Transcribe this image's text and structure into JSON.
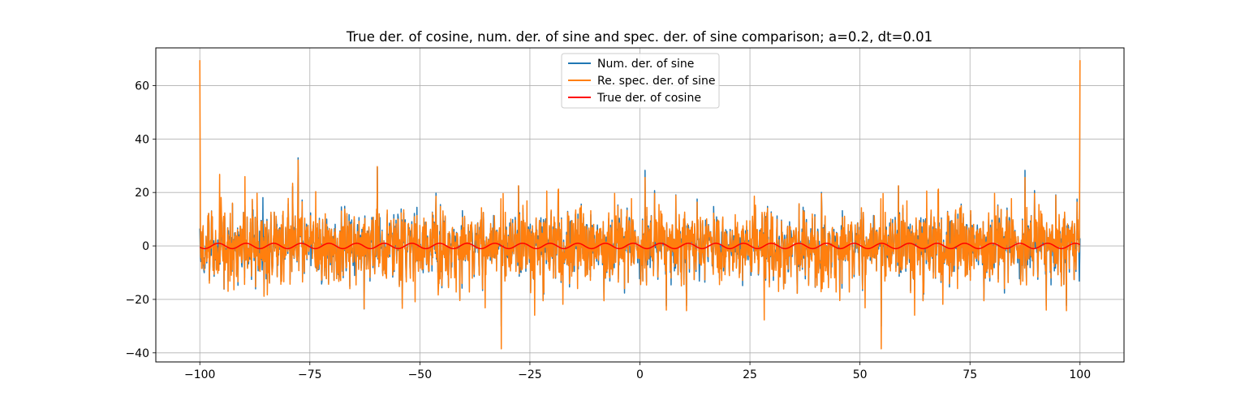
{
  "chart_data": {
    "type": "line",
    "title": "True der. of cosine, num. der. of sine and spec. der. of sine comparison; a=0.2, dt=0.01",
    "xlabel": "",
    "ylabel": "",
    "xlim": [
      -110,
      110
    ],
    "ylim": [
      -43.4,
      74.1
    ],
    "x_range": [
      -100,
      100
    ],
    "dt": 0.01,
    "a": 0.2,
    "grid": true,
    "legend_position": "upper center",
    "xticks": [
      -100,
      -75,
      -50,
      -25,
      0,
      25,
      50,
      75,
      100
    ],
    "xtick_labels": [
      "−100",
      "−75",
      "−50",
      "−25",
      "0",
      "25",
      "50",
      "75",
      "100"
    ],
    "yticks": [
      -40,
      -20,
      0,
      20,
      40,
      60
    ],
    "ytick_labels": [
      "−40",
      "−20",
      "0",
      "20",
      "40",
      "60"
    ],
    "series": [
      {
        "name": "Num. der. of sine",
        "color": "#1f77b4",
        "description_values": {
          "typical_band": [
            -20,
            20
          ],
          "min": -38,
          "max": 36
        }
      },
      {
        "name": "Re. spec. der. of sine",
        "color": "#ff7f0e",
        "description_values": {
          "typical_band": [
            -22,
            24
          ],
          "min": -38.5,
          "max": 69.5,
          "edge_spikes": [
            [
              -100,
              69.5
            ],
            [
              100,
              69.5
            ]
          ]
        }
      },
      {
        "name": "True der. of cosine",
        "color": "#ff0000",
        "amplitude": 1,
        "period": 6.28
      }
    ]
  }
}
